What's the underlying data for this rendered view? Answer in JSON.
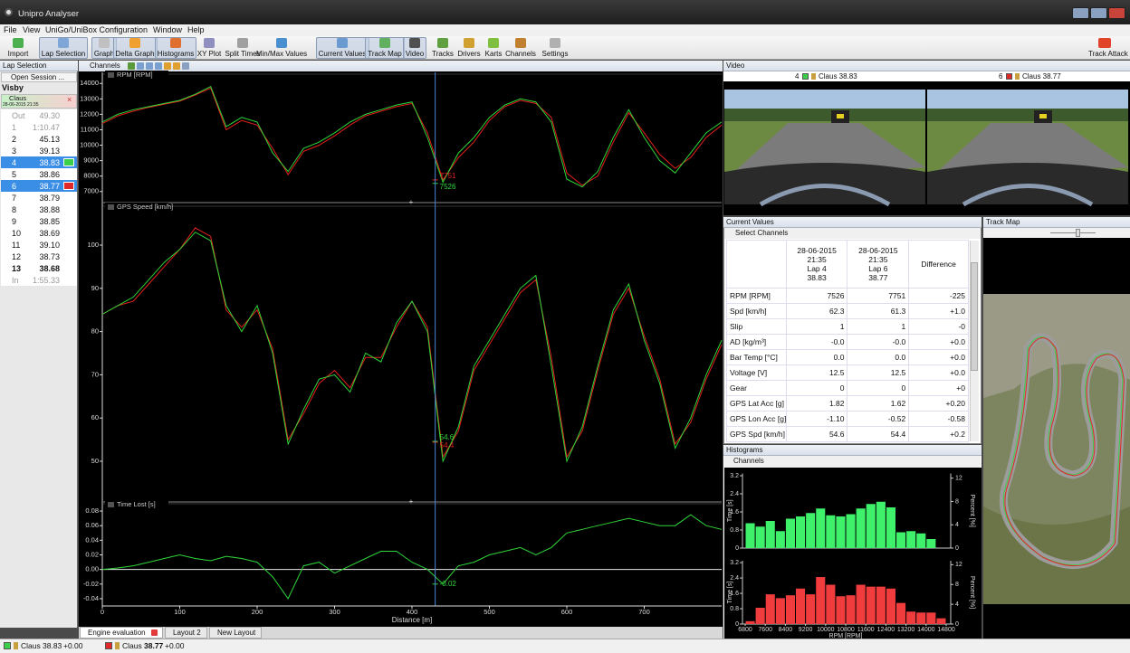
{
  "window": {
    "title": "Unipro Analyser"
  },
  "menu": [
    "File",
    "View",
    "UniGo/UniBox Configuration",
    "Window",
    "Help"
  ],
  "toolbar": [
    "Import",
    "Lap Selection",
    "Graph",
    "Delta Graph",
    "Histograms",
    "XY Plot",
    "Split Times",
    "Min/Max Values",
    "Current Values",
    "Track Map",
    "Video",
    "Tracks",
    "Drivers",
    "Karts",
    "Channels",
    "Settings"
  ],
  "toolbar_right": "Track Attack",
  "lap_selection": {
    "title": "Lap Selection",
    "open_session": "Open Session ...",
    "track": "Visby",
    "driver": "Claus",
    "date": "28-06-2015 21:35",
    "laps": [
      {
        "lap": "Out",
        "time": "49.30"
      },
      {
        "lap": "1",
        "time": "1:10.47"
      },
      {
        "lap": "2",
        "time": "45.13"
      },
      {
        "lap": "3",
        "time": "39.13"
      },
      {
        "lap": "4",
        "time": "38.83"
      },
      {
        "lap": "5",
        "time": "38.86"
      },
      {
        "lap": "6",
        "time": "38.77"
      },
      {
        "lap": "7",
        "time": "38.79"
      },
      {
        "lap": "8",
        "time": "38.88"
      },
      {
        "lap": "9",
        "time": "38.85"
      },
      {
        "lap": "10",
        "time": "38.69"
      },
      {
        "lap": "11",
        "time": "39.10"
      },
      {
        "lap": "12",
        "time": "38.73"
      },
      {
        "lap": "13",
        "time": "38.68"
      },
      {
        "lap": "In",
        "time": "1:55.33"
      }
    ]
  },
  "graph": {
    "channels": "Channels",
    "x_label": "Distance [m]",
    "xlim": [
      0,
      800
    ],
    "xticks": [
      0,
      100,
      200,
      300,
      400,
      500,
      600,
      700
    ],
    "cursor": 430,
    "x": [
      0,
      20,
      40,
      60,
      80,
      100,
      120,
      140,
      160,
      180,
      200,
      220,
      240,
      260,
      280,
      300,
      320,
      340,
      360,
      380,
      400,
      420,
      440,
      460,
      480,
      500,
      520,
      540,
      560,
      580,
      600,
      620,
      640,
      660,
      680,
      700,
      720,
      740,
      760,
      780,
      800
    ],
    "panels": [
      {
        "type": "line",
        "title": "RPM [RPM]",
        "ylim": [
          6400,
          14600
        ],
        "yticks": [
          7000,
          8000,
          9000,
          10000,
          11000,
          12000,
          13000,
          14000
        ],
        "cursor_values": [
          7526,
          7751
        ],
        "series": [
          {
            "color": "#2fd63a",
            "values": [
              11500,
              12000,
              12300,
              12500,
              12700,
              12900,
              13300,
              13800,
              11200,
              11800,
              11500,
              9500,
              8300,
              9800,
              10200,
              10800,
              11500,
              12000,
              12300,
              12600,
              12800,
              10500,
              7600,
              9500,
              10500,
              11800,
              12600,
              13000,
              12800,
              11500,
              7800,
              7300,
              8300,
              10500,
              12300,
              10500,
              9000,
              8200,
              9500,
              10800,
              11500
            ]
          },
          {
            "color": "#e3201c",
            "values": [
              11400,
              11900,
              12200,
              12450,
              12650,
              12850,
              13250,
              13700,
              11000,
              11600,
              11300,
              9800,
              8100,
              9600,
              10000,
              10600,
              11300,
              11900,
              12200,
              12500,
              12700,
              10800,
              7750,
              9200,
              10200,
              11600,
              12500,
              12900,
              12700,
              11800,
              8200,
              7400,
              8000,
              10200,
              12100,
              10800,
              9400,
              8500,
              9200,
              10500,
              11300
            ]
          }
        ]
      },
      {
        "type": "line",
        "title": "GPS Speed [km/h]",
        "ylim": [
          41,
          109
        ],
        "yticks": [
          50,
          60,
          70,
          80,
          90,
          100
        ],
        "cursor_values": [
          54.6,
          54.4
        ],
        "series": [
          {
            "color": "#2fd63a",
            "values": [
              84,
              86,
              88,
              92,
              96,
              99,
              103,
              101,
              86,
              80,
              86,
              75,
              54,
              62,
              69,
              70,
              66,
              75,
              73,
              82,
              87,
              80,
              50,
              58,
              72,
              78,
              84,
              90,
              93,
              72,
              50,
              58,
              72,
              85,
              91,
              78,
              68,
              53,
              60,
              70,
              78
            ]
          },
          {
            "color": "#e3201c",
            "values": [
              84,
              86,
              87,
              91,
              95,
              99,
              104,
              102,
              85,
              81,
              85,
              76,
              55,
              61,
              68,
              71,
              67,
              74,
              74,
              81,
              87,
              81,
              51,
              57,
              71,
              77,
              83,
              89,
              92,
              74,
              51,
              57,
              71,
              84,
              90,
              79,
              69,
              54,
              59,
              69,
              77
            ]
          }
        ]
      },
      {
        "type": "line",
        "title": "Time Lost [s]",
        "ylim": [
          -0.05,
          0.09
        ],
        "yticks": [
          -0.04,
          -0.02,
          {
            "value": 0,
            "label": "0.00"
          },
          0.02,
          0.04,
          0.06,
          0.08
        ],
        "cursor_values": [
          -0.02
        ],
        "series": [
          {
            "color": "#2fd63a",
            "values": [
              0,
              0.002,
              0.005,
              0.01,
              0.015,
              0.02,
              0.015,
              0.012,
              0.018,
              0.015,
              0.01,
              -0.01,
              -0.04,
              0.005,
              0.01,
              -0.005,
              0.005,
              0.015,
              0.025,
              0.025,
              0.01,
              0,
              -0.02,
              0.005,
              0.01,
              0.02,
              0.025,
              0.03,
              0.02,
              0.03,
              0.05,
              0.055,
              0.06,
              0.065,
              0.07,
              0.065,
              0.06,
              0.06,
              0.075,
              0.06,
              0.055
            ]
          }
        ]
      }
    ]
  },
  "tabs": [
    "Engine evaluation",
    "Layout 2",
    "New Layout"
  ],
  "status": [
    {
      "driver": "Claus",
      "time": "38.83",
      "delta": "+0.00"
    },
    {
      "driver": "Claus",
      "time": "38.77",
      "delta": "+0.00"
    }
  ],
  "video": {
    "title": "Video",
    "labels": [
      {
        "lap": "4",
        "driver": "Claus 38.83"
      },
      {
        "lap": "6",
        "driver": "Claus 38.77"
      }
    ]
  },
  "current_values": {
    "title": "Current Values",
    "select": "Select Channels",
    "columns": [
      [
        "28-06-2015",
        "21:35",
        "Lap 4",
        "38.83"
      ],
      [
        "28-06-2015",
        "21:35",
        "Lap 6",
        "38.77"
      ]
    ],
    "difference": "Difference",
    "rows": [
      [
        "RPM [RPM]",
        "7526",
        "7751",
        "-225"
      ],
      [
        "Spd [km/h]",
        "62.3",
        "61.3",
        "+1.0"
      ],
      [
        "Slip",
        "1",
        "1",
        "-0"
      ],
      [
        "AD [kg/m³]",
        "-0.0",
        "-0.0",
        "+0.0"
      ],
      [
        "Bar Temp [°C]",
        "0.0",
        "0.0",
        "+0.0"
      ],
      [
        "Voltage [V]",
        "12.5",
        "12.5",
        "+0.0"
      ],
      [
        "Gear",
        "0",
        "0",
        "+0"
      ],
      [
        "GPS Lat Acc [g]",
        "1.82",
        "1.62",
        "+0.20"
      ],
      [
        "GPS Lon Acc [g]",
        "-1.10",
        "-0.52",
        "-0.58"
      ],
      [
        "GPS Spd [km/h]",
        "54.6",
        "54.4",
        "+0.2"
      ]
    ]
  },
  "histograms": {
    "title": "Histograms",
    "channels": "Channels",
    "x_label": "RPM [RPM]",
    "y_label": "Time [s]",
    "y2_label": "Percent [%]",
    "bins": [
      6800,
      7200,
      7600,
      8000,
      8400,
      8800,
      9200,
      9600,
      10000,
      10400,
      10800,
      11200,
      11600,
      12000,
      12400,
      12800,
      13200,
      13600,
      14000,
      14400,
      14800
    ],
    "xticks": [
      6800,
      7600,
      8400,
      9200,
      10000,
      10800,
      11600,
      12400,
      13200,
      14000,
      14800
    ],
    "ylim": [
      0,
      3.3
    ],
    "yticks": [
      0,
      0.8,
      1.6,
      2.4,
      3.2
    ],
    "y2lim": [
      0,
      12.8
    ],
    "y2ticks": [
      0,
      4,
      8,
      12
    ],
    "series": [
      {
        "color": "#3ef06a",
        "values": [
          1.1,
          0.95,
          1.2,
          0.75,
          1.3,
          1.4,
          1.55,
          1.75,
          1.45,
          1.4,
          1.5,
          1.75,
          1.95,
          2.05,
          1.8,
          0.7,
          0.75,
          0.65,
          0.4,
          0
        ]
      },
      {
        "color": "#f03c3c",
        "values": [
          0.15,
          0.85,
          1.55,
          1.35,
          1.5,
          1.85,
          1.55,
          2.45,
          2.05,
          1.45,
          1.5,
          2.05,
          1.95,
          1.95,
          1.85,
          1.1,
          0.65,
          0.6,
          0.6,
          0.3
        ]
      }
    ]
  },
  "track_map": {
    "title": "Track Map"
  }
}
